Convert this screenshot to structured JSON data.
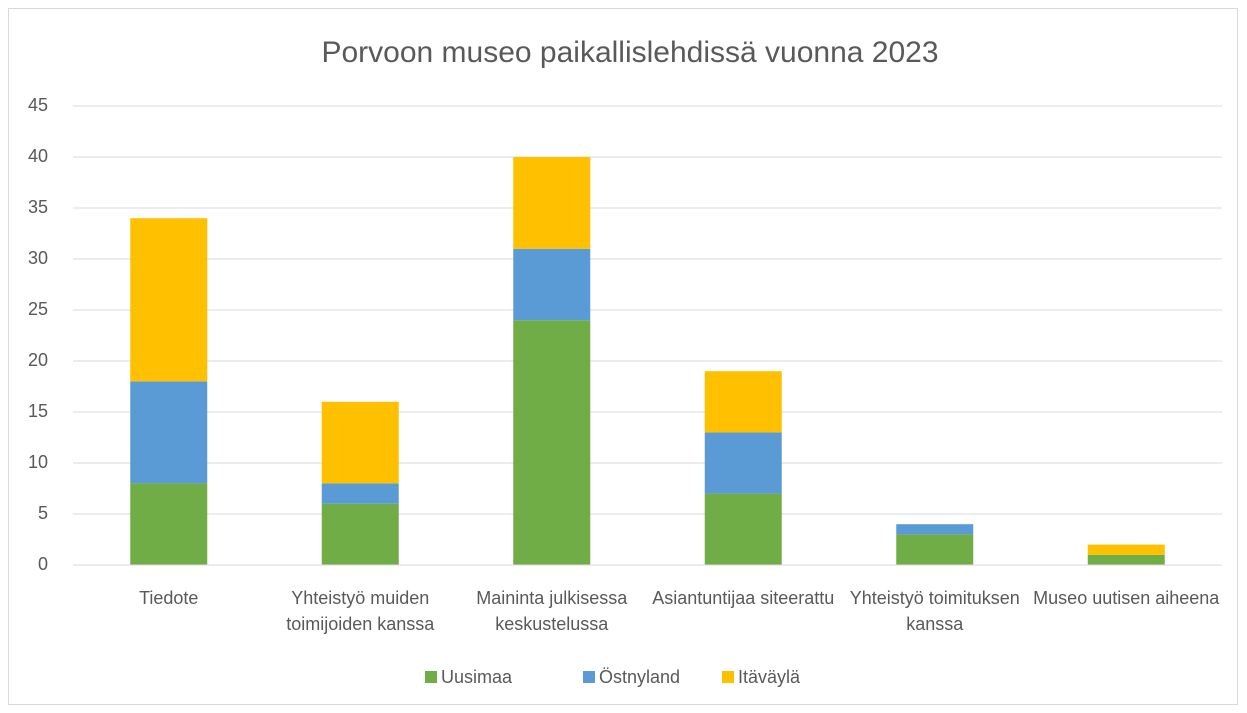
{
  "chart_data": {
    "type": "stacked_bar",
    "title": "Porvoon museo paikallislehdissä vuonna 2023",
    "categories": [
      "Tiedote",
      "Yhteistyö muiden toimijoiden kanssa",
      "Maininta julkisessa keskustelussa",
      "Asiantuntijaa siteerattu",
      "Yhteistyö toimituksen kanssa",
      "Museo uutisen aiheena"
    ],
    "series": [
      {
        "name": "Uusimaa",
        "color": "#70ad47",
        "values": [
          8,
          6,
          24,
          7,
          3,
          1
        ]
      },
      {
        "name": "Östnyland",
        "color": "#5b9bd5",
        "values": [
          10,
          2,
          7,
          6,
          1,
          0
        ]
      },
      {
        "name": "Itäväylä",
        "color": "#ffc000",
        "values": [
          16,
          8,
          9,
          6,
          0,
          1
        ]
      }
    ],
    "ylim": [
      0,
      45
    ],
    "yticks": [
      0,
      5,
      10,
      15,
      20,
      25,
      30,
      35,
      40,
      45
    ],
    "grid": true,
    "legend": "bottom"
  }
}
